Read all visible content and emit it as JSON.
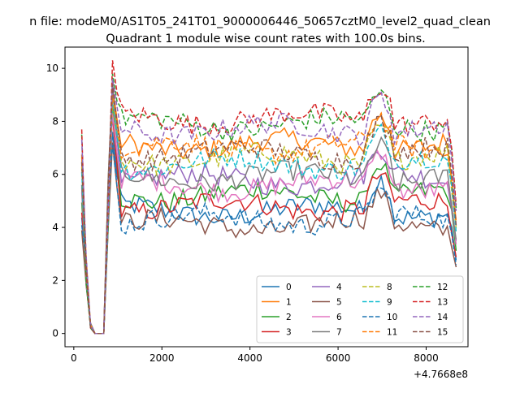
{
  "chart_data": {
    "type": "line",
    "suptitle": "n file: modeM0/AS1T05_241T01_9000006446_50657cztM0_level2_quad_clean",
    "title": "Quadrant 1 module wise count rates with 100.0s bins.",
    "xlabel": "",
    "ylabel": "",
    "axis_offset_text": "+4.7668e8",
    "xlim": [
      -200,
      8950
    ],
    "ylim": [
      -0.5,
      10.8
    ],
    "xticks": [
      0,
      2000,
      4000,
      6000,
      8000
    ],
    "xtick_labels": [
      "0",
      "2000",
      "4000",
      "6000",
      "8000"
    ],
    "yticks": [
      0,
      2,
      4,
      6,
      8,
      10
    ],
    "ytick_labels": [
      "0",
      "2",
      "4",
      "6",
      "8",
      "10"
    ],
    "grid": false,
    "legend_position": "lower right",
    "legend_columns": 4,
    "series": [
      {
        "name": "0",
        "color": "#1f77b4",
        "dashed": false,
        "level": 4.6,
        "peak": 7.6
      },
      {
        "name": "1",
        "color": "#ff7f0e",
        "dashed": false,
        "level": 7.1,
        "peak": 9.3
      },
      {
        "name": "2",
        "color": "#2ca02c",
        "dashed": false,
        "level": 5.2,
        "peak": 8.6
      },
      {
        "name": "3",
        "color": "#d62728",
        "dashed": false,
        "level": 4.8,
        "peak": 8.2
      },
      {
        "name": "4",
        "color": "#9467bd",
        "dashed": false,
        "level": 5.8,
        "peak": 9.2
      },
      {
        "name": "5",
        "color": "#8c564b",
        "dashed": false,
        "level": 4.1,
        "peak": 7.2
      },
      {
        "name": "6",
        "color": "#e377c2",
        "dashed": false,
        "level": 5.6,
        "peak": 8.3
      },
      {
        "name": "7",
        "color": "#7f7f7f",
        "dashed": false,
        "level": 5.9,
        "peak": 9.5
      },
      {
        "name": "8",
        "color": "#bcbd22",
        "dashed": true,
        "level": 6.6,
        "peak": 8.7
      },
      {
        "name": "9",
        "color": "#17becf",
        "dashed": true,
        "level": 6.4,
        "peak": 8.9
      },
      {
        "name": "10",
        "color": "#1f77b4",
        "dashed": true,
        "level": 4.3,
        "peak": 7.1
      },
      {
        "name": "11",
        "color": "#ff7f0e",
        "dashed": true,
        "level": 7.0,
        "peak": 9.0
      },
      {
        "name": "12",
        "color": "#2ca02c",
        "dashed": true,
        "level": 7.9,
        "peak": 9.8
      },
      {
        "name": "13",
        "color": "#d62728",
        "dashed": true,
        "level": 8.1,
        "peak": 10.3
      },
      {
        "name": "14",
        "color": "#9467bd",
        "dashed": true,
        "level": 7.7,
        "peak": 9.6
      },
      {
        "name": "15",
        "color": "#8c564b",
        "dashed": true,
        "level": 6.8,
        "peak": 9.4
      }
    ]
  }
}
